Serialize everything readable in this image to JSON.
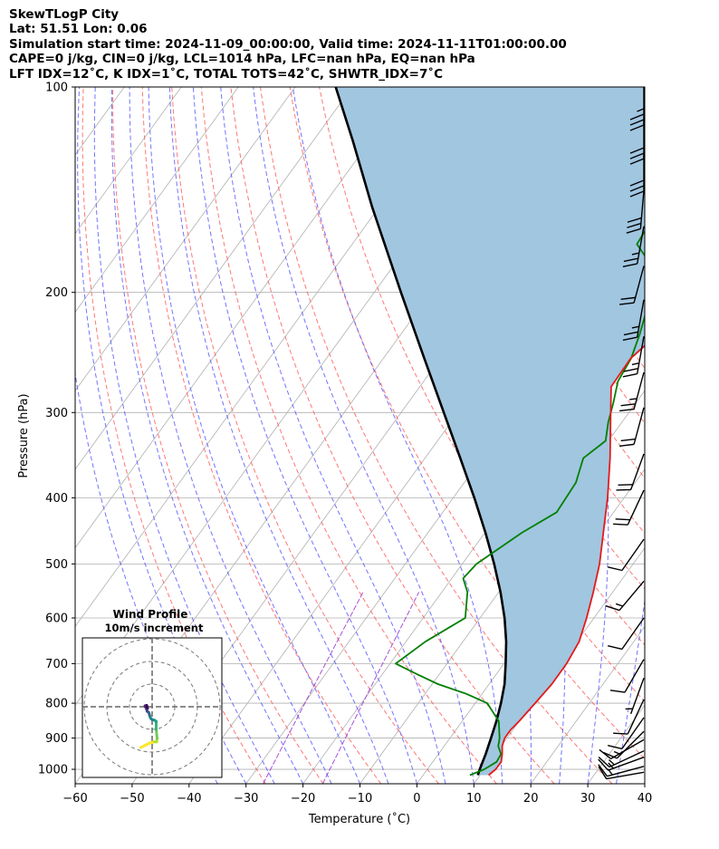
{
  "header": {
    "title": "SkewTLogP City",
    "location": "Lat: 51.51   Lon: 0.06",
    "times": "Simulation start time: 2024-11-09_00:00:00, Valid time: 2024-11-11T01:00:00.00",
    "indices1": "CAPE=0 j/kg, CIN=0 j/kg, LCL=1014 hPa, LFC=nan hPa, EQ=nan hPa",
    "indices2": "LFT IDX=12˚C, K IDX=1˚C, TOTAL TOTS=42˚C, SHWTR_IDX=7˚C"
  },
  "chart_data": {
    "type": "line",
    "subtype": "skew-t log-p",
    "xlabel": "Temperature (˚C)",
    "ylabel": "Pressure (hPa)",
    "xlim": [
      -60,
      40
    ],
    "ylim_pressure": [
      1050,
      100
    ],
    "x_ticks": [
      "−60",
      "−50",
      "−40",
      "−30",
      "−20",
      "−10",
      "0",
      "10",
      "20",
      "30",
      "40"
    ],
    "x_tick_values": [
      -60,
      -50,
      -40,
      -30,
      -20,
      -10,
      0,
      10,
      20,
      30,
      40
    ],
    "y_ticks": [
      "100",
      "200",
      "300",
      "400",
      "500",
      "600",
      "700",
      "800",
      "900",
      "1000"
    ],
    "y_tick_values": [
      100,
      200,
      300,
      400,
      500,
      600,
      700,
      800,
      900,
      1000
    ],
    "grid": true,
    "colors": {
      "temperature": "#e41a1c",
      "dewpoint": "#008000",
      "parcel": "#000000",
      "shade": "#a1c6e0",
      "isotherm": "#b0b0b0",
      "dry_adiabat": "#ff5555",
      "moist_adiabat": "#4444ff",
      "mixing_ratio": "#9933cc"
    },
    "series": [
      {
        "role": "temperature",
        "points": [
          [
            1020,
            11.5
          ],
          [
            1000,
            12.0
          ],
          [
            975,
            12.0
          ],
          [
            950,
            11.2
          ],
          [
            925,
            10.2
          ],
          [
            900,
            9.6
          ],
          [
            875,
            9.6
          ],
          [
            850,
            10.0
          ],
          [
            800,
            10.5
          ],
          [
            750,
            11.0
          ],
          [
            700,
            11.0
          ],
          [
            650,
            10.4
          ],
          [
            600,
            8.7
          ],
          [
            550,
            6.6
          ],
          [
            500,
            4.1
          ],
          [
            450,
            0.8
          ],
          [
            400,
            -2.9
          ],
          [
            350,
            -7.5
          ],
          [
            300,
            -13.2
          ],
          [
            275,
            -16.4
          ],
          [
            250,
            -16.6
          ],
          [
            225,
            -14.5
          ],
          [
            200,
            -13.5
          ],
          [
            180,
            -12.3
          ],
          [
            160,
            -12.2
          ],
          [
            145,
            -13.0
          ],
          [
            130,
            -12.5
          ],
          [
            115,
            -9.7
          ],
          [
            105,
            -7.6
          ],
          [
            100,
            -7.7
          ]
        ]
      },
      {
        "role": "dewpoint",
        "points": [
          [
            1020,
            8.2
          ],
          [
            1000,
            10.0
          ],
          [
            975,
            11.2
          ],
          [
            950,
            11.0
          ],
          [
            925,
            9.5
          ],
          [
            900,
            8.7
          ],
          [
            850,
            6.4
          ],
          [
            800,
            2.1
          ],
          [
            775,
            -2.8
          ],
          [
            750,
            -9.0
          ],
          [
            725,
            -14.0
          ],
          [
            700,
            -19.0
          ],
          [
            650,
            -16.6
          ],
          [
            600,
            -12.6
          ],
          [
            550,
            -15.5
          ],
          [
            525,
            -18.0
          ],
          [
            500,
            -17.5
          ],
          [
            450,
            -13.5
          ],
          [
            420,
            -10.0
          ],
          [
            380,
            -10.4
          ],
          [
            350,
            -12.2
          ],
          [
            330,
            -10.5
          ],
          [
            310,
            -12.4
          ],
          [
            290,
            -14.0
          ],
          [
            270,
            -15.9
          ],
          [
            250,
            -16.5
          ],
          [
            230,
            -18.1
          ],
          [
            200,
            -21.3
          ],
          [
            185,
            -23.8
          ],
          [
            170,
            -30.0
          ],
          [
            160,
            -30.4
          ],
          [
            140,
            -31.2
          ],
          [
            120,
            -30.3
          ],
          [
            100,
            -31.3
          ]
        ]
      },
      {
        "role": "parcel",
        "points": [
          [
            1020,
            9.6
          ],
          [
            1000,
            9.2
          ],
          [
            950,
            8.3
          ],
          [
            900,
            7.2
          ],
          [
            850,
            6.0
          ],
          [
            800,
            4.5
          ],
          [
            750,
            2.7
          ],
          [
            700,
            0.3
          ],
          [
            650,
            -2.4
          ],
          [
            600,
            -5.7
          ],
          [
            550,
            -9.7
          ],
          [
            500,
            -14.4
          ],
          [
            450,
            -19.9
          ],
          [
            400,
            -26.3
          ],
          [
            350,
            -33.8
          ],
          [
            300,
            -42.5
          ],
          [
            250,
            -52.8
          ],
          [
            200,
            -65.3
          ],
          [
            150,
            -81.2
          ],
          [
            120,
            -93.0
          ],
          [
            100,
            -102.9
          ]
        ]
      }
    ],
    "wind_barbs": [
      {
        "p": 1010,
        "speed_kt": 10,
        "dir": 260
      },
      {
        "p": 990,
        "speed_kt": 15,
        "dir": 255
      },
      {
        "p": 960,
        "speed_kt": 15,
        "dir": 250
      },
      {
        "p": 940,
        "speed_kt": 15,
        "dir": 245
      },
      {
        "p": 905,
        "speed_kt": 10,
        "dir": 240
      },
      {
        "p": 880,
        "speed_kt": 15,
        "dir": 225
      },
      {
        "p": 840,
        "speed_kt": 10,
        "dir": 215
      },
      {
        "p": 790,
        "speed_kt": 10,
        "dir": 205
      },
      {
        "p": 735,
        "speed_kt": 5,
        "dir": 200
      },
      {
        "p": 690,
        "speed_kt": 10,
        "dir": 210
      },
      {
        "p": 600,
        "speed_kt": 10,
        "dir": 215
      },
      {
        "p": 530,
        "speed_kt": 15,
        "dir": 220
      },
      {
        "p": 460,
        "speed_kt": 10,
        "dir": 215
      },
      {
        "p": 390,
        "speed_kt": 20,
        "dir": 205
      },
      {
        "p": 345,
        "speed_kt": 20,
        "dir": 200
      },
      {
        "p": 295,
        "speed_kt": 20,
        "dir": 195
      },
      {
        "p": 262,
        "speed_kt": 25,
        "dir": 195
      },
      {
        "p": 232,
        "speed_kt": 25,
        "dir": 190
      },
      {
        "p": 205,
        "speed_kt": 25,
        "dir": 190
      },
      {
        "p": 183,
        "speed_kt": 20,
        "dir": 195
      },
      {
        "p": 160,
        "speed_kt": 25,
        "dir": 190
      },
      {
        "p": 142,
        "speed_kt": 30,
        "dir": 185
      },
      {
        "p": 125,
        "speed_kt": 30,
        "dir": 180
      },
      {
        "p": 112,
        "speed_kt": 30,
        "dir": 180
      },
      {
        "p": 100,
        "speed_kt": 35,
        "dir": 180
      }
    ]
  },
  "hodograph": {
    "title": "Wind Profile",
    "subtitle": "10m/s increment",
    "rings_ms": [
      10,
      20,
      30
    ],
    "color_scale": "viridis",
    "points": [
      [
        -5,
        -18
      ],
      [
        -3,
        -17
      ],
      [
        -1,
        -16
      ],
      [
        1.0,
        -15.5
      ],
      [
        2.0,
        -15.5
      ],
      [
        2.2,
        -14
      ],
      [
        2.0,
        -12
      ],
      [
        1.8,
        -10
      ],
      [
        1.8,
        -8
      ],
      [
        1.8,
        -6.5
      ],
      [
        1.2,
        -6.0
      ],
      [
        0.5,
        -5.8
      ],
      [
        -0.3,
        -5.5
      ],
      [
        -0.8,
        -4.8
      ],
      [
        -1.2,
        -3.5
      ],
      [
        -1.5,
        -2.5
      ],
      [
        -2.2,
        -2.0
      ],
      [
        -2.5,
        -1.0
      ],
      [
        -3.0,
        0.0
      ],
      [
        -3.1,
        0.4
      ],
      [
        -2.4,
        0.6
      ],
      [
        -2.2,
        -0.3
      ],
      [
        -2.0,
        -0.7
      ]
    ]
  }
}
